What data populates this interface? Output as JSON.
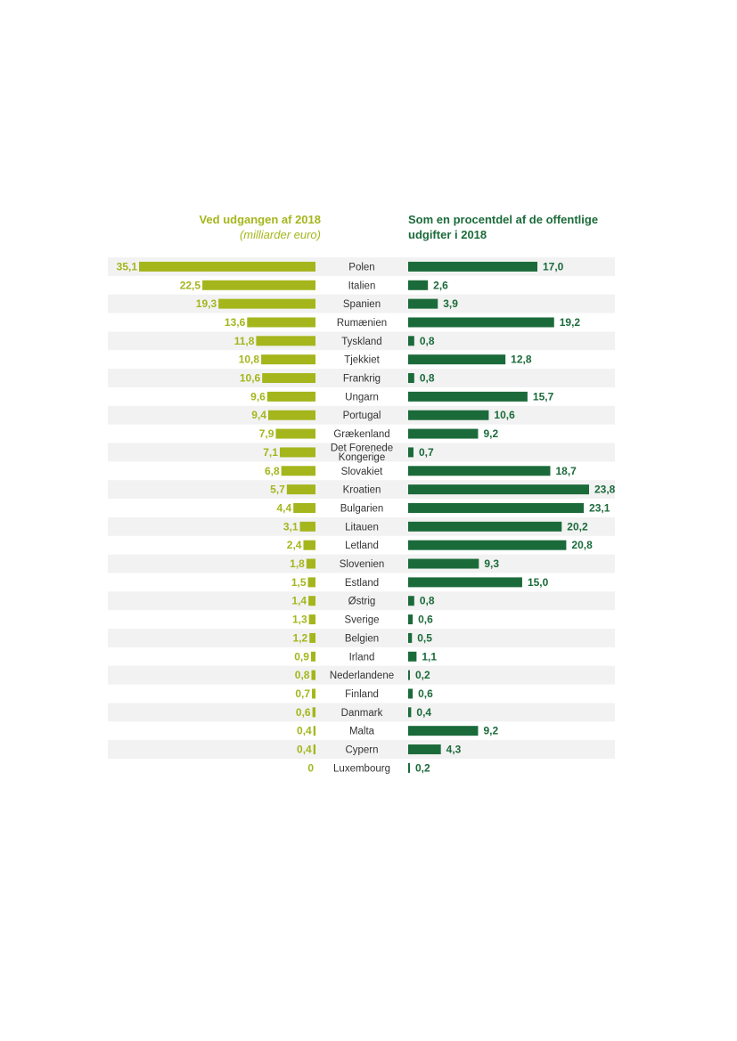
{
  "chart_data": {
    "type": "bar",
    "left_title": "Ved udgangen af 2018",
    "left_subtitle": "(milliarder euro)",
    "right_title_line1": "Som en procentdel af de offentlige",
    "right_title_line2": "udgifter i 2018",
    "colors": {
      "left": "#a4b61c",
      "right": "#1b6b3a",
      "stripe": "#f2f2f2"
    },
    "categories": [
      [
        "Polen"
      ],
      [
        "Italien"
      ],
      [
        "Spanien"
      ],
      [
        "Rumænien"
      ],
      [
        "Tyskland"
      ],
      [
        "Tjekkiet"
      ],
      [
        "Frankrig"
      ],
      [
        "Ungarn"
      ],
      [
        "Portugal"
      ],
      [
        "Grækenland"
      ],
      [
        "Det Forenede",
        "Kongerige"
      ],
      [
        "Slovakiet"
      ],
      [
        "Kroatien"
      ],
      [
        "Bulgarien"
      ],
      [
        "Litauen"
      ],
      [
        "Letland"
      ],
      [
        "Slovenien"
      ],
      [
        "Estland"
      ],
      [
        "Østrig"
      ],
      [
        "Sverige"
      ],
      [
        "Belgien"
      ],
      [
        "Irland"
      ],
      [
        "Nederlandene"
      ],
      [
        "Finland"
      ],
      [
        "Danmark"
      ],
      [
        "Malta"
      ],
      [
        "Cypern"
      ],
      [
        "Luxembourg"
      ]
    ],
    "series": [
      {
        "name": "Ved udgangen af 2018 (milliarder euro)",
        "values": [
          35.1,
          22.5,
          19.3,
          13.6,
          11.8,
          10.8,
          10.6,
          9.6,
          9.4,
          7.9,
          7.1,
          6.8,
          5.7,
          4.4,
          3.1,
          2.4,
          1.8,
          1.5,
          1.4,
          1.3,
          1.2,
          0.9,
          0.8,
          0.7,
          0.6,
          0.4,
          0.4,
          0
        ],
        "labels": [
          "35,1",
          "22,5",
          "19,3",
          "13,6",
          "11,8",
          "10,8",
          "10,6",
          "9,6",
          "9,4",
          "7,9",
          "7,1",
          "6,8",
          "5,7",
          "4,4",
          "3,1",
          "2,4",
          "1,8",
          "1,5",
          "1,4",
          "1,3",
          "1,2",
          "0,9",
          "0,8",
          "0,7",
          "0,6",
          "0,4",
          "0,4",
          "0"
        ]
      },
      {
        "name": "Som en procentdel af de offentlige udgifter i 2018",
        "values": [
          17.0,
          2.6,
          3.9,
          19.2,
          0.8,
          12.8,
          0.8,
          15.7,
          10.6,
          9.2,
          0.7,
          18.7,
          23.8,
          23.1,
          20.2,
          20.8,
          9.3,
          15.0,
          0.8,
          0.6,
          0.5,
          1.1,
          0.2,
          0.6,
          0.4,
          9.2,
          4.3,
          0.2
        ],
        "labels": [
          "17,0",
          "2,6",
          "3,9",
          "19,2",
          "0,8",
          "12,8",
          "0,8",
          "15,7",
          "10,6",
          "9,2",
          "0,7",
          "18,7",
          "23,8",
          "23,1",
          "20,2",
          "20,8",
          "9,3",
          "15,0",
          "0,8",
          "0,6",
          "0,5",
          "1,1",
          "0,2",
          "0,6",
          "0,4",
          "9,2",
          "4,3",
          "0,2"
        ]
      }
    ]
  }
}
